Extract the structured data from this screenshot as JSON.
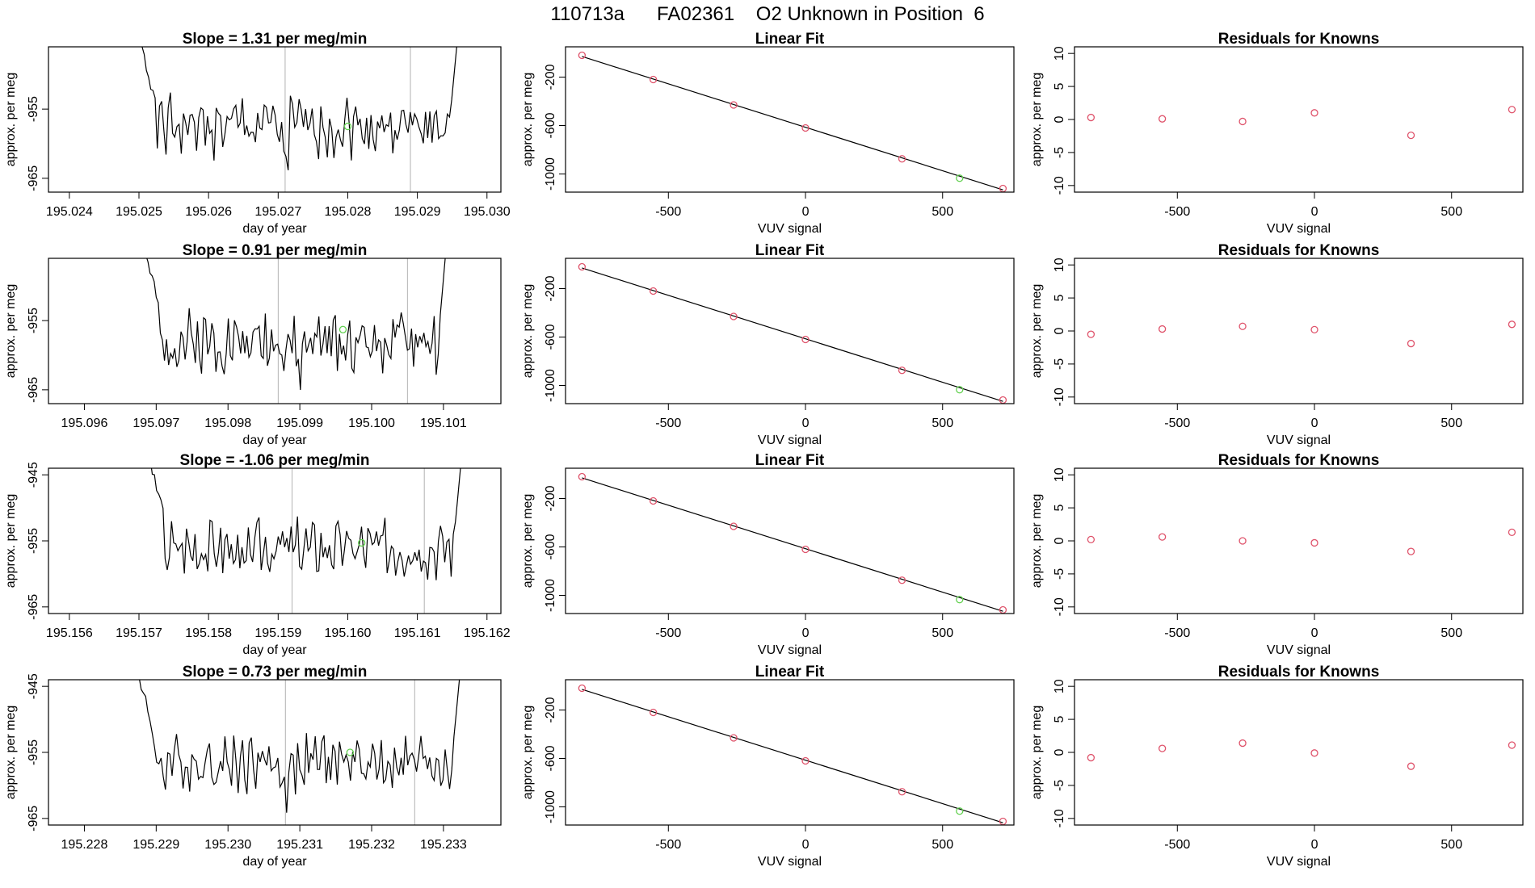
{
  "page": {
    "title": "110713a      FA02361    O2 Unknown in Position  6"
  },
  "colors": {
    "line": "#000000",
    "frame": "#000000",
    "guide": "#bebebe",
    "known_point": "#df536b",
    "unknown_point": "#61d04f"
  },
  "chart_data": [
    {
      "type": "line",
      "row": 0,
      "col": 0,
      "title": "Slope =  1.31  per meg/min",
      "xlabel": "day of year",
      "ylabel": "approx. per meg",
      "xlim": [
        195.0237,
        195.0302
      ],
      "ylim": [
        -967,
        -946
      ],
      "xticks": [
        "195.024",
        "195.025",
        "195.026",
        "195.027",
        "195.028",
        "195.029",
        "195.030"
      ],
      "yticks": [
        "-955",
        "-965"
      ],
      "vlines": [
        195.0271,
        195.0289
      ],
      "start": 195.02495,
      "end": 195.02965,
      "level": -957.5,
      "dip": 195.0271,
      "seed": 1,
      "marker": {
        "x": 195.028,
        "y": -957.5
      }
    },
    {
      "type": "scatter",
      "row": 0,
      "col": 1,
      "title": "Linear Fit",
      "xlabel": "VUV signal",
      "ylabel": "approx. per meg",
      "xlim": [
        -875,
        760
      ],
      "ylim": [
        -1150,
        50
      ],
      "xticks": [
        "-500",
        "0",
        "500"
      ],
      "yticks": [
        "-200",
        "-600",
        "-1000"
      ],
      "known_x": [
        -815,
        -555,
        -262,
        0,
        352,
        720
      ],
      "known_y": [
        -20,
        -220,
        -430,
        -620,
        -875,
        -1120
      ],
      "unknown_x": [
        562
      ],
      "unknown_y": [
        -1035
      ]
    },
    {
      "type": "scatter",
      "row": 0,
      "col": 2,
      "title": "Residuals for Knowns",
      "xlabel": "VUV signal",
      "ylabel": "approx. per meg",
      "xlim": [
        -875,
        760
      ],
      "ylim": [
        -11,
        11
      ],
      "xticks": [
        "-500",
        "0",
        "500"
      ],
      "yticks": [
        "10",
        "5",
        "0",
        "-5",
        "-10"
      ],
      "x": [
        -815,
        -555,
        -262,
        0,
        352,
        720
      ],
      "y": [
        0.3,
        0.1,
        -0.3,
        1.0,
        -2.4,
        1.5
      ]
    },
    {
      "type": "line",
      "row": 1,
      "col": 0,
      "title": "Slope =  0.91  per meg/min",
      "xlabel": "day of year",
      "ylabel": "approx. per meg",
      "xlim": [
        195.0955,
        195.1018
      ],
      "ylim": [
        -967,
        -946
      ],
      "xticks": [
        "195.096",
        "195.097",
        "195.098",
        "195.099",
        "195.100",
        "195.101"
      ],
      "yticks": [
        "-955",
        "-965"
      ],
      "vlines": [
        195.0987,
        195.1005
      ],
      "start": 195.0968,
      "end": 195.1011,
      "level": -958,
      "dip": 195.099,
      "seed": 2,
      "marker": {
        "x": 195.0996,
        "y": -956.3
      }
    },
    {
      "type": "scatter",
      "row": 1,
      "col": 1,
      "title": "Linear Fit",
      "xlabel": "VUV signal",
      "ylabel": "approx. per meg",
      "xlim": [
        -875,
        760
      ],
      "ylim": [
        -1150,
        50
      ],
      "xticks": [
        "-500",
        "0",
        "500"
      ],
      "yticks": [
        "-200",
        "-600",
        "-1000"
      ],
      "known_x": [
        -815,
        -555,
        -262,
        0,
        352,
        720
      ],
      "known_y": [
        -20,
        -220,
        -430,
        -620,
        -875,
        -1120
      ],
      "unknown_x": [
        562
      ],
      "unknown_y": [
        -1035
      ]
    },
    {
      "type": "scatter",
      "row": 1,
      "col": 2,
      "title": "Residuals for Knowns",
      "xlabel": "VUV signal",
      "ylabel": "approx. per meg",
      "xlim": [
        -875,
        760
      ],
      "ylim": [
        -11,
        11
      ],
      "xticks": [
        "-500",
        "0",
        "500"
      ],
      "yticks": [
        "10",
        "5",
        "0",
        "-5",
        "-10"
      ],
      "x": [
        -815,
        -555,
        -262,
        0,
        352,
        720
      ],
      "y": [
        -0.5,
        0.3,
        0.7,
        0.2,
        -1.9,
        1.0
      ]
    },
    {
      "type": "line",
      "row": 2,
      "col": 0,
      "title": "Slope =  -1.06  per meg/min",
      "xlabel": "day of year",
      "ylabel": "approx. per meg",
      "xlim": [
        195.1557,
        195.1622
      ],
      "ylim": [
        -966,
        -944
      ],
      "xticks": [
        "195.156",
        "195.157",
        "195.158",
        "195.159",
        "195.160",
        "195.161",
        "195.162"
      ],
      "yticks": [
        "-945",
        "-955",
        "-965"
      ],
      "vlines": [
        195.1592,
        195.1611
      ],
      "start": 195.1571,
      "end": 195.1617,
      "level": -956,
      "dip": 195.1585,
      "seed": 3,
      "marker": {
        "x": 195.1602,
        "y": -955.3
      }
    },
    {
      "type": "scatter",
      "row": 2,
      "col": 1,
      "title": "Linear Fit",
      "xlabel": "VUV signal",
      "ylabel": "approx. per meg",
      "xlim": [
        -875,
        760
      ],
      "ylim": [
        -1150,
        50
      ],
      "xticks": [
        "-500",
        "0",
        "500"
      ],
      "yticks": [
        "-200",
        "-600",
        "-1000"
      ],
      "known_x": [
        -815,
        -555,
        -262,
        0,
        352,
        720
      ],
      "known_y": [
        -20,
        -220,
        -430,
        -620,
        -875,
        -1120
      ],
      "unknown_x": [
        562
      ],
      "unknown_y": [
        -1035
      ]
    },
    {
      "type": "scatter",
      "row": 2,
      "col": 2,
      "title": "Residuals for Knowns",
      "xlabel": "VUV signal",
      "ylabel": "approx. per meg",
      "xlim": [
        -875,
        760
      ],
      "ylim": [
        -11,
        11
      ],
      "xticks": [
        "-500",
        "0",
        "500"
      ],
      "yticks": [
        "10",
        "5",
        "0",
        "-5",
        "-10"
      ],
      "x": [
        -815,
        -555,
        -262,
        0,
        352,
        720
      ],
      "y": [
        0.2,
        0.6,
        0.0,
        -0.3,
        -1.6,
        1.3
      ]
    },
    {
      "type": "line",
      "row": 3,
      "col": 0,
      "title": "Slope =  0.73  per meg/min",
      "xlabel": "day of year",
      "ylabel": "approx. per meg",
      "xlim": [
        195.2275,
        195.2338
      ],
      "ylim": [
        -966,
        -944
      ],
      "xticks": [
        "195.228",
        "195.229",
        "195.230",
        "195.231",
        "195.232",
        "195.233"
      ],
      "yticks": [
        "-945",
        "-955",
        "-965"
      ],
      "vlines": [
        195.2308,
        195.2326
      ],
      "start": 195.2287,
      "end": 195.2333,
      "level": -956.5,
      "dip": 195.2308,
      "seed": 4,
      "marker": {
        "x": 195.2317,
        "y": -955
      }
    },
    {
      "type": "scatter",
      "row": 3,
      "col": 1,
      "title": "Linear Fit",
      "xlabel": "VUV signal",
      "ylabel": "approx. per meg",
      "xlim": [
        -875,
        760
      ],
      "ylim": [
        -1150,
        50
      ],
      "xticks": [
        "-500",
        "0",
        "500"
      ],
      "yticks": [
        "-200",
        "-600",
        "-1000"
      ],
      "known_x": [
        -815,
        -555,
        -262,
        0,
        352,
        720
      ],
      "known_y": [
        -20,
        -220,
        -430,
        -620,
        -875,
        -1120
      ],
      "unknown_x": [
        562
      ],
      "unknown_y": [
        -1035
      ]
    },
    {
      "type": "scatter",
      "row": 3,
      "col": 2,
      "title": "Residuals for Knowns",
      "xlabel": "VUV signal",
      "ylabel": "approx. per meg",
      "xlim": [
        -875,
        760
      ],
      "ylim": [
        -11,
        11
      ],
      "xticks": [
        "-500",
        "0",
        "500"
      ],
      "yticks": [
        "10",
        "5",
        "0",
        "-5",
        "-10"
      ],
      "x": [
        -815,
        -555,
        -262,
        0,
        352,
        720
      ],
      "y": [
        -0.8,
        0.6,
        1.4,
        -0.1,
        -2.1,
        1.1
      ]
    }
  ]
}
